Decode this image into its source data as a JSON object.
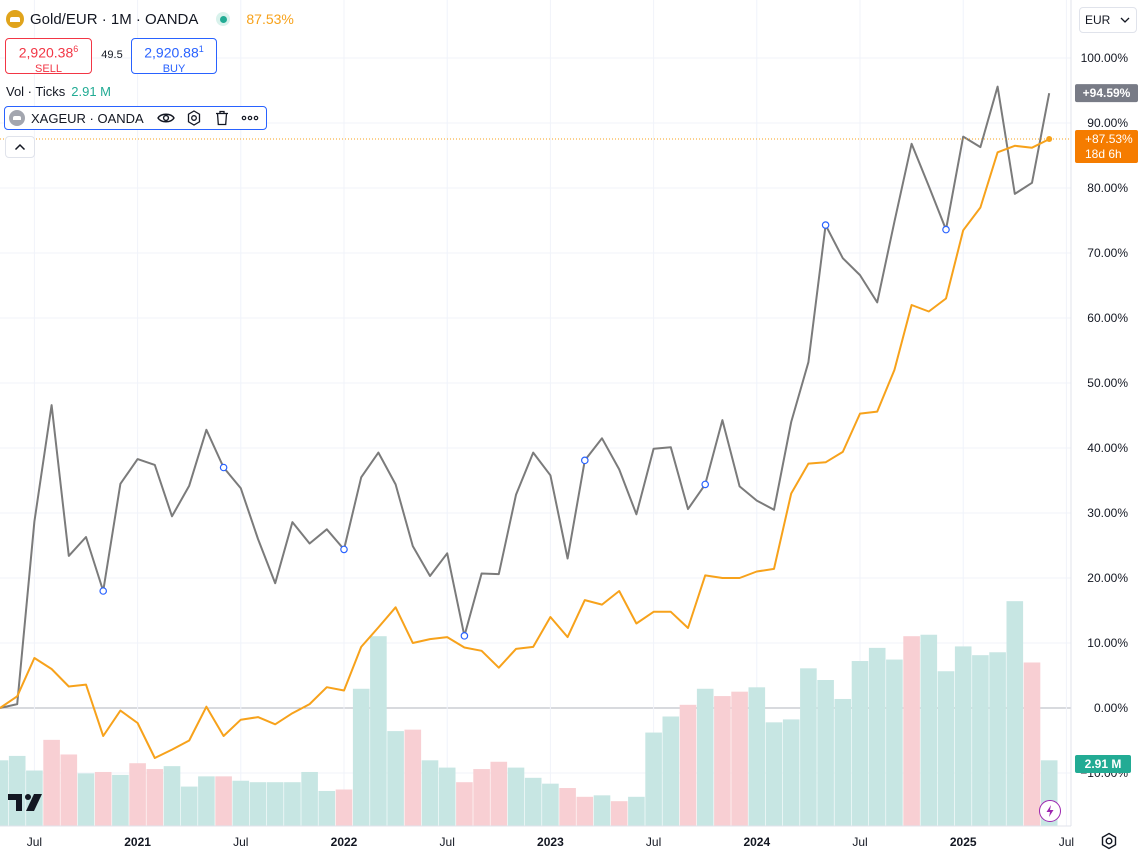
{
  "header": {
    "symbol_title": "Gold/EUR · 1M · OANDA",
    "change_percent": "87.53%"
  },
  "trade": {
    "sell_price_main": "2,920.38",
    "sell_price_super": "6",
    "sell_label": "SELL",
    "spread": "49.5",
    "buy_price_main": "2,920.88",
    "buy_price_super": "1",
    "buy_label": "BUY"
  },
  "volume_legend": {
    "label": "Vol · Ticks",
    "value": "2.91 M"
  },
  "compare_symbol": {
    "label": "XAGEUR · OANDA"
  },
  "currency_selector": {
    "value": "EUR"
  },
  "colors": {
    "gold_line": "#f7a21b",
    "silver_line": "#7b7b7b",
    "vol_up": "#c7e6e3",
    "vol_down": "#f8cfd3",
    "marker": "#2962ff",
    "silver_label_bg": "#787b86",
    "gold_label_bg": "#f57c00",
    "vol_label_bg": "#22ab94"
  },
  "icons": {
    "eye": "eye-icon",
    "settings": "settings-icon",
    "delete": "trash-icon",
    "more": "more-icon",
    "collapse": "chevron-up-icon",
    "dropdown": "chevron-down-icon",
    "flash": "lightning-icon",
    "gear": "gear-icon",
    "logo": "tradingview-logo"
  },
  "chart_data": {
    "type": "line",
    "title": "Gold/EUR · 1M · OANDA",
    "ylabel": "",
    "xlabel": "",
    "y_unit": "%",
    "ylim": [
      -15.5,
      104.6
    ],
    "grid": true,
    "x_start": "2020-05",
    "x_tick_labels": [
      "Jul",
      "2021",
      "Jul",
      "2022",
      "Jul",
      "2023",
      "Jul",
      "2024",
      "Jul",
      "2025",
      "Jul"
    ],
    "x_tick_months": [
      "2020-07",
      "2021-01",
      "2021-07",
      "2022-01",
      "2022-07",
      "2023-01",
      "2023-07",
      "2024-01",
      "2024-07",
      "2025-01",
      "2025-07"
    ],
    "y_ticks": [
      100,
      90,
      80,
      70,
      60,
      50,
      40,
      30,
      20,
      10,
      0,
      -10
    ],
    "y_tick_labels": [
      "100.00%",
      "90.00%",
      "80.00%",
      "70.00%",
      "60.00%",
      "50.00%",
      "40.00%",
      "30.00%",
      "20.00%",
      "10.00%",
      "0.00%",
      "−10.00%"
    ],
    "series": [
      {
        "name": "Gold/EUR",
        "values": [
          0,
          1.8,
          7.7,
          6,
          3.3,
          3.6,
          -4.3,
          -0.4,
          -2.3,
          -7.7,
          -6.4,
          -5,
          0.2,
          -4.3,
          -1.8,
          -1.4,
          -2.5,
          -0.8,
          0.6,
          3.2,
          2.7,
          9.4,
          12.4,
          15.5,
          10,
          10.6,
          10.9,
          9.3,
          8.8,
          6.2,
          9.1,
          9.4,
          14,
          10.9,
          16.6,
          15.9,
          18,
          13,
          14.8,
          14.8,
          12.3,
          20.4,
          20,
          20,
          21,
          21.4,
          33,
          37.6,
          37.8,
          39.4,
          45.3,
          45.6,
          52,
          62,
          61,
          63,
          73.5,
          77,
          85.5,
          86.5,
          86.2,
          87.53
        ],
        "last_label": "+87.53%",
        "countdown": "18d 6h"
      },
      {
        "name": "XAGEUR · OANDA",
        "values": [
          0,
          0.6,
          28.7,
          46.6,
          23.4,
          26.3,
          18,
          34.5,
          38.3,
          37.4,
          29.5,
          34.2,
          42.8,
          37,
          33.8,
          26,
          19.2,
          28.6,
          25.3,
          27.5,
          24.4,
          35.5,
          39.3,
          34.4,
          24.9,
          20.3,
          23.8,
          11.1,
          20.7,
          20.6,
          32.8,
          39.3,
          35.8,
          23,
          38.1,
          41.5,
          36.7,
          29.8,
          39.9,
          40.1,
          30.6,
          34.4,
          44.3,
          34.1,
          31.9,
          30.5,
          44,
          53.2,
          74.3,
          69.2,
          66.6,
          62.4,
          74.8,
          86.8,
          80.3,
          73.6,
          87.9,
          86.3,
          95.6,
          79.1,
          80.8,
          94.59
        ],
        "marked_points": [
          6,
          13,
          20,
          27,
          34,
          41,
          48,
          55
        ],
        "last_label": "+94.59%"
      }
    ],
    "volume": {
      "name": "Vol · Ticks",
      "value_label": "2.91 M",
      "direction": [
        1,
        1,
        1,
        0,
        0,
        1,
        0,
        1,
        0,
        0,
        1,
        1,
        1,
        0,
        1,
        1,
        1,
        1,
        1,
        1,
        0,
        1,
        1,
        1,
        0,
        1,
        1,
        0,
        0,
        0,
        1,
        1,
        1,
        0,
        0,
        1,
        0,
        1,
        1,
        1,
        0,
        1,
        0,
        0,
        1,
        1,
        1,
        1,
        1,
        1,
        1,
        1,
        1,
        0,
        1,
        1,
        1,
        1,
        1,
        1,
        0,
        1
      ],
      "relative": [
        0.45,
        0.48,
        0.38,
        0.59,
        0.49,
        0.36,
        0.37,
        0.35,
        0.43,
        0.39,
        0.41,
        0.27,
        0.34,
        0.34,
        0.31,
        0.3,
        0.3,
        0.3,
        0.37,
        0.24,
        0.25,
        0.94,
        1.3,
        0.65,
        0.66,
        0.45,
        0.4,
        0.3,
        0.39,
        0.44,
        0.4,
        0.33,
        0.29,
        0.26,
        0.2,
        0.21,
        0.17,
        0.2,
        0.64,
        0.75,
        0.83,
        0.94,
        0.89,
        0.92,
        0.95,
        0.71,
        0.73,
        1.08,
        1.0,
        0.87,
        1.13,
        1.22,
        1.14,
        1.3,
        1.31,
        1.06,
        1.23,
        1.17,
        1.19,
        1.54,
        1.12,
        0.45
      ]
    }
  }
}
